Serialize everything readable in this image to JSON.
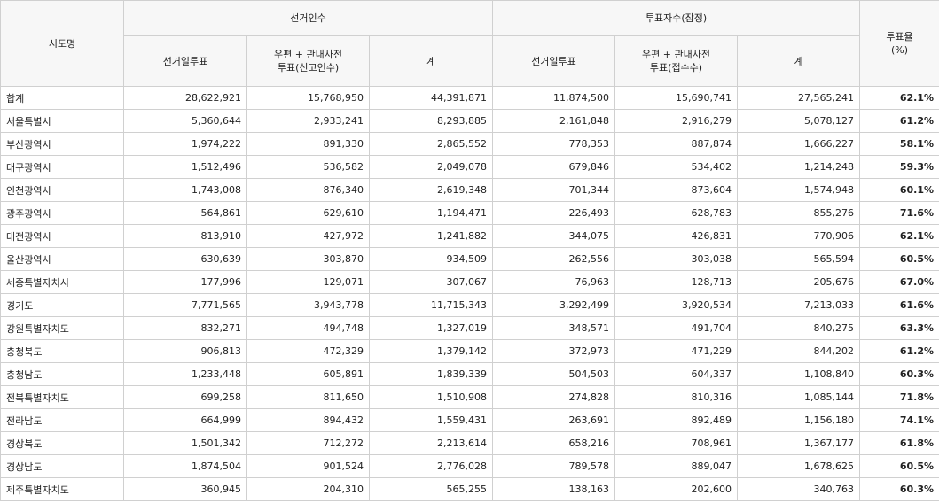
{
  "table": {
    "header": {
      "region": "시도명",
      "groups": [
        "선거인수",
        "투표자수(잠정)"
      ],
      "turnout": [
        "투표율",
        "(%)"
      ],
      "sub": [
        [
          "선거일투표"
        ],
        [
          "우편 + 관내사전",
          "투표(신고인수)"
        ],
        [
          "계"
        ],
        [
          "선거일투표"
        ],
        [
          "우편 + 관내사전",
          "투표(접수수)"
        ],
        [
          "계"
        ]
      ]
    },
    "rows": [
      [
        "합계",
        "28,622,921",
        "15,768,950",
        "44,391,871",
        "11,874,500",
        "15,690,741",
        "27,565,241",
        "62.1%"
      ],
      [
        "서울특별시",
        "5,360,644",
        "2,933,241",
        "8,293,885",
        "2,161,848",
        "2,916,279",
        "5,078,127",
        "61.2%"
      ],
      [
        "부산광역시",
        "1,974,222",
        "891,330",
        "2,865,552",
        "778,353",
        "887,874",
        "1,666,227",
        "58.1%"
      ],
      [
        "대구광역시",
        "1,512,496",
        "536,582",
        "2,049,078",
        "679,846",
        "534,402",
        "1,214,248",
        "59.3%"
      ],
      [
        "인천광역시",
        "1,743,008",
        "876,340",
        "2,619,348",
        "701,344",
        "873,604",
        "1,574,948",
        "60.1%"
      ],
      [
        "광주광역시",
        "564,861",
        "629,610",
        "1,194,471",
        "226,493",
        "628,783",
        "855,276",
        "71.6%"
      ],
      [
        "대전광역시",
        "813,910",
        "427,972",
        "1,241,882",
        "344,075",
        "426,831",
        "770,906",
        "62.1%"
      ],
      [
        "울산광역시",
        "630,639",
        "303,870",
        "934,509",
        "262,556",
        "303,038",
        "565,594",
        "60.5%"
      ],
      [
        "세종특별자치시",
        "177,996",
        "129,071",
        "307,067",
        "76,963",
        "128,713",
        "205,676",
        "67.0%"
      ],
      [
        "경기도",
        "7,771,565",
        "3,943,778",
        "11,715,343",
        "3,292,499",
        "3,920,534",
        "7,213,033",
        "61.6%"
      ],
      [
        "강원특별자치도",
        "832,271",
        "494,748",
        "1,327,019",
        "348,571",
        "491,704",
        "840,275",
        "63.3%"
      ],
      [
        "충청북도",
        "906,813",
        "472,329",
        "1,379,142",
        "372,973",
        "471,229",
        "844,202",
        "61.2%"
      ],
      [
        "충청남도",
        "1,233,448",
        "605,891",
        "1,839,339",
        "504,503",
        "604,337",
        "1,108,840",
        "60.3%"
      ],
      [
        "전북특별자치도",
        "699,258",
        "811,650",
        "1,510,908",
        "274,828",
        "810,316",
        "1,085,144",
        "71.8%"
      ],
      [
        "전라남도",
        "664,999",
        "894,432",
        "1,559,431",
        "263,691",
        "892,489",
        "1,156,180",
        "74.1%"
      ],
      [
        "경상북도",
        "1,501,342",
        "712,272",
        "2,213,614",
        "658,216",
        "708,961",
        "1,367,177",
        "61.8%"
      ],
      [
        "경상남도",
        "1,874,504",
        "901,524",
        "2,776,028",
        "789,578",
        "889,047",
        "1,678,625",
        "60.5%"
      ],
      [
        "제주특별자치도",
        "360,945",
        "204,310",
        "565,255",
        "138,163",
        "202,600",
        "340,763",
        "60.3%"
      ]
    ]
  }
}
